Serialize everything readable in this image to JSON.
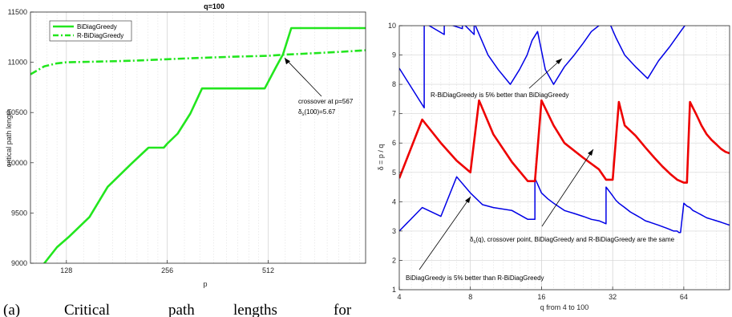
{
  "caption": {
    "words": [
      "(a)",
      "Critical",
      "path",
      "lengths",
      "for"
    ]
  },
  "colors": {
    "green": "#22e61e",
    "red": "#ee0000",
    "blue": "#0000e6",
    "grid": "#d9d9d9"
  },
  "chart_data": [
    {
      "type": "line",
      "title": "q=100",
      "xlabel": "p",
      "ylabel": "critical path length",
      "xscale": "log2",
      "xlim": [
        100,
        1000
      ],
      "ylim": [
        9000,
        11500
      ],
      "xticks": [
        128,
        256,
        512
      ],
      "xtick_labels": [
        "128",
        "256",
        "512"
      ],
      "yticks": [
        9000,
        9500,
        10000,
        10500,
        11000,
        11500
      ],
      "ytick_labels": [
        "9000",
        "9500",
        "10000",
        "10500",
        "11000",
        "11500"
      ],
      "grid": "x-minor",
      "legend": "top-left",
      "series": [
        {
          "name": "BiDiagGreedy",
          "style": "solid",
          "color": "green",
          "x": [
            100,
            110,
            120,
            130,
            150,
            170,
            200,
            225,
            250,
            256,
            275,
            300,
            325,
            350,
            450,
            500,
            540,
            567,
            600,
            700,
            1000
          ],
          "y": [
            8860,
            9000,
            9160,
            9260,
            9460,
            9760,
            9990,
            10150,
            10150,
            10190,
            10290,
            10490,
            10740,
            10740,
            10740,
            10740,
            10950,
            11080,
            11340,
            11340,
            11340
          ]
        },
        {
          "name": "R-BiDiagGreedy",
          "style": "dashdot",
          "color": "green",
          "x": [
            100,
            110,
            120,
            128,
            150,
            200,
            256,
            300,
            400,
            512,
            567,
            650,
            750,
            850,
            1000
          ],
          "y": [
            10880,
            10960,
            10990,
            11000,
            11005,
            11015,
            11030,
            11040,
            11055,
            11065,
            11075,
            11085,
            11095,
            11105,
            11120
          ]
        }
      ],
      "annotations": [
        {
          "line1": "crossover at p=567",
          "line2": "δ",
          "line2_sub": "s",
          "line2_rest": "(100)=5.67",
          "target_x": 567,
          "target_y": 11075
        }
      ]
    },
    {
      "type": "line",
      "xlabel": "q from 4 to 100",
      "ylabel": "δ = p / q",
      "xscale": "log2",
      "xlim": [
        4,
        100
      ],
      "ylim": [
        1,
        10
      ],
      "xticks": [
        4,
        8,
        16,
        32,
        64
      ],
      "xtick_labels": [
        "4",
        "8",
        "16",
        "32",
        "64"
      ],
      "yticks": [
        1,
        2,
        3,
        4,
        5,
        6,
        7,
        8,
        9,
        10
      ],
      "ytick_labels": [
        "1",
        "2",
        "3",
        "4",
        "5",
        "6",
        "7",
        "8",
        "9",
        "10"
      ],
      "grid": "both",
      "series": [
        {
          "color": "blue",
          "style": "solid",
          "x": [
            4,
            5,
            5,
            5,
            6,
            6,
            7,
            8,
            8,
            8,
            9,
            10,
            12,
            14,
            15,
            15,
            16,
            17,
            18,
            20,
            22,
            24,
            26,
            28,
            29,
            30,
            30,
            32,
            33,
            34,
            36,
            38,
            40,
            42,
            44,
            46,
            48,
            50,
            52,
            54,
            56,
            58,
            60,
            61,
            62,
            64,
            66,
            66,
            68,
            70,
            72,
            74,
            76,
            78,
            80,
            84,
            88,
            92,
            96,
            100
          ],
          "y": [
            3.0,
            3.8,
            3.8,
            3.8,
            3.5,
            3.5,
            4.85,
            4.3,
            4.3,
            4.3,
            3.9,
            3.8,
            3.7,
            3.4,
            3.4,
            4.8,
            4.3,
            4.1,
            3.95,
            3.7,
            3.6,
            3.5,
            3.4,
            3.35,
            3.3,
            3.25,
            4.5,
            4.2,
            4.05,
            3.95,
            3.8,
            3.65,
            3.55,
            3.45,
            3.35,
            3.3,
            3.25,
            3.2,
            3.15,
            3.1,
            3.05,
            3.0,
            3.0,
            2.95,
            2.95,
            3.95,
            3.85,
            3.85,
            3.8,
            3.7,
            3.65,
            3.6,
            3.55,
            3.5,
            3.45,
            3.4,
            3.35,
            3.3,
            3.25,
            3.2
          ]
        },
        {
          "color": "red",
          "style": "solid",
          "x": [
            4,
            5,
            6,
            7,
            8,
            8.7,
            10,
            12,
            14,
            15,
            16,
            18,
            20,
            24,
            28,
            30,
            32,
            34,
            36,
            40,
            44,
            48,
            52,
            56,
            60,
            64,
            66,
            68,
            70,
            72,
            74,
            76,
            80,
            84,
            88,
            92,
            96,
            100
          ],
          "y": [
            4.8,
            6.8,
            6.0,
            5.4,
            5.0,
            7.45,
            6.3,
            5.35,
            4.7,
            4.7,
            7.45,
            6.6,
            6.0,
            5.5,
            5.1,
            4.75,
            4.75,
            7.4,
            6.6,
            6.25,
            5.85,
            5.5,
            5.2,
            4.95,
            4.75,
            4.65,
            4.65,
            7.4,
            7.2,
            7.0,
            6.8,
            6.6,
            6.3,
            6.1,
            5.95,
            5.8,
            5.7,
            5.65
          ]
        },
        {
          "color": "blue",
          "style": "solid",
          "x": [
            4,
            5.1,
            5.1,
            6.2,
            6.2,
            7.4,
            7.4,
            8.3,
            8.3,
            9.5,
            10.5,
            11.8,
            12.9,
            13.9,
            14.6,
            15.4,
            16.6,
            18.0,
            20.0,
            22.0,
            24.0,
            26.0,
            29.0,
            31.0,
            33.0,
            36.0,
            40.0,
            45.0,
            50.0,
            56.0,
            62.0,
            66.0,
            68.0,
            69.0,
            70.0,
            73.0,
            76.0,
            80.0,
            85.0,
            90.0,
            95.0,
            100.0
          ],
          "y": [
            8.55,
            7.2,
            10.1,
            9.7,
            10.1,
            9.9,
            10.1,
            9.7,
            10.1,
            9.0,
            8.5,
            8.0,
            8.5,
            9.0,
            9.5,
            9.8,
            8.5,
            8.0,
            8.6,
            9.0,
            9.4,
            9.8,
            10.1,
            10.1,
            9.6,
            9.0,
            8.6,
            8.2,
            8.8,
            9.3,
            9.8,
            10.1,
            10.1,
            10.1,
            10.1,
            10.1,
            10.1,
            10.1,
            10.1,
            10.1,
            10.1,
            10.1
          ]
        }
      ],
      "annotations": [
        {
          "text": "R-BiDiagGreedy is 5% better than BiDiagGreedy",
          "target_x": 17,
          "target_y": 9.05
        },
        {
          "text_pre": "δ",
          "text_sub": "s",
          "text_rest": "(q), crossover point, BiDiagGreedy and R-BiDiagGreedy are the same",
          "target_x": 27,
          "target_y": 5.5
        },
        {
          "text": "BiDiagGreedy is 5% better than R-BiDiagGreedy",
          "target_x": 7.4,
          "target_y": 3.9
        }
      ]
    }
  ]
}
